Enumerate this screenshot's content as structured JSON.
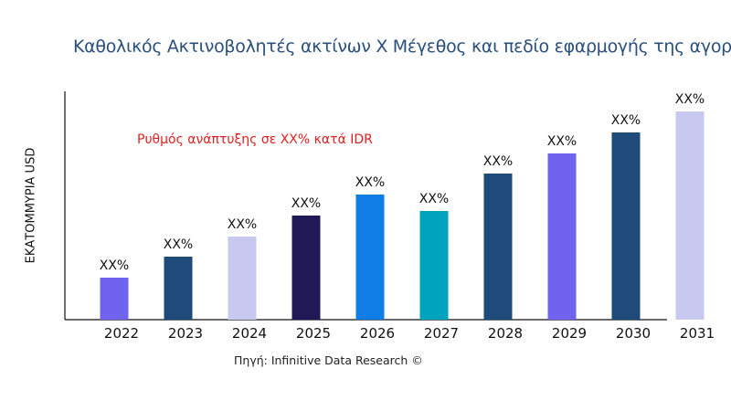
{
  "chart_data": {
    "type": "bar",
    "title": "Καθολικός Ακτινοβολητές ακτίνων X Μέγεθος και πεδίο εφαρμογής της αγοράς",
    "xlabel": "",
    "ylabel": "ΕΚΑΤΟΜΜΥΡΙΑ USD",
    "categories": [
      "2022",
      "2023",
      "2024",
      "2025",
      "2026",
      "2027",
      "2028",
      "2029",
      "2030",
      "2031"
    ],
    "values": [
      46,
      69,
      91,
      114,
      137,
      119,
      160,
      182,
      205,
      228
    ],
    "data_labels": [
      "XX%",
      "XX%",
      "XX%",
      "XX%",
      "XX%",
      "XX%",
      "XX%",
      "XX%",
      "XX%",
      "XX%"
    ],
    "colors": [
      "#6f63f0",
      "#1f4b7a",
      "#c9c9f0",
      "#1f1a55",
      "#0f7de3",
      "#00a3bd",
      "#1f4b7a",
      "#6f63f0",
      "#1f4b7a",
      "#c9c9f0"
    ],
    "ylim": [
      0,
      250
    ],
    "grid": false,
    "annotation": "Ρυθμός ανάπτυξης σε XX% κατά IDR",
    "source": "Πηγή: Infinitive Data Research ©"
  }
}
